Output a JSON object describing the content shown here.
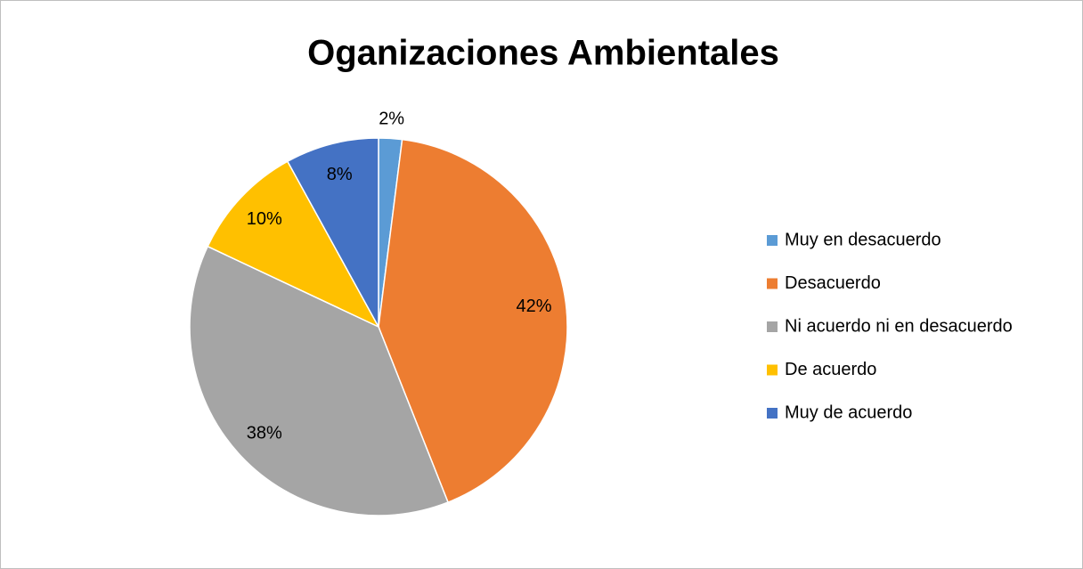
{
  "chart_data": {
    "type": "pie",
    "title": "Oganizaciones Ambientales",
    "categories": [
      "Muy en desacuerdo",
      "Desacuerdo",
      "Ni acuerdo ni en desacuerdo",
      "De acuerdo",
      "Muy de acuerdo"
    ],
    "values": [
      2,
      42,
      38,
      10,
      8
    ],
    "value_labels": [
      "2%",
      "42%",
      "38%",
      "10%",
      "8%"
    ],
    "colors": [
      "#5b9bd5",
      "#ed7d31",
      "#a5a5a5",
      "#ffc000",
      "#4472c4"
    ],
    "legend": "right"
  }
}
